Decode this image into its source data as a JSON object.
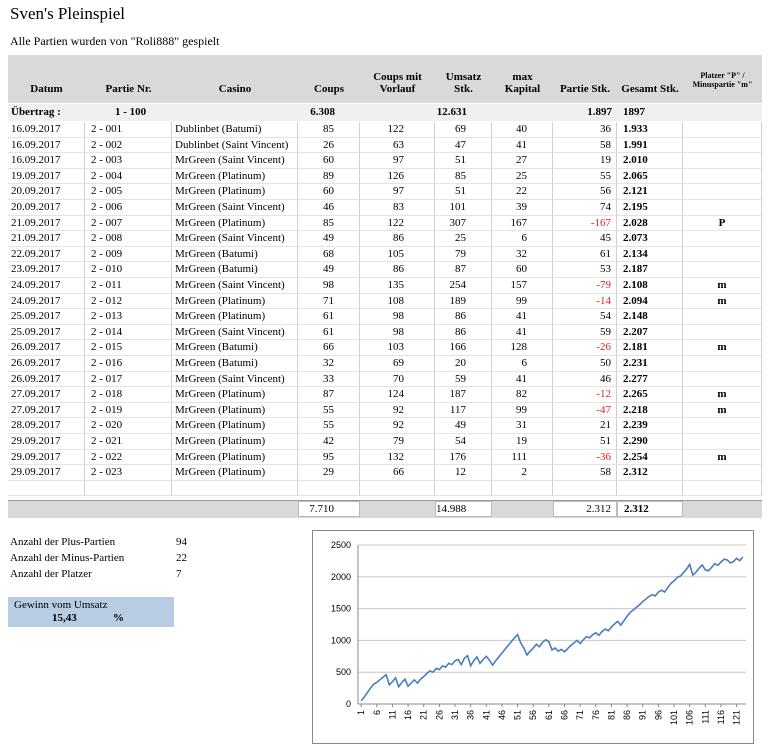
{
  "title": "Sven's Pleinspiel",
  "subtitle": "Alle Partien wurden von \"Roli888\" gespielt",
  "table": {
    "headers": [
      "Datum",
      "Partie Nr.",
      "Casino",
      "Coups",
      "Coups mit Vorlauf",
      "Umsatz Stk.",
      "max Kapital",
      "Partie Stk.",
      "Gesamt Stk.",
      "Platzer \"P\" / Minuspartie \"m\""
    ],
    "carry": {
      "label": "Übertrag :",
      "partie": "1 - 100",
      "coups": "6.308",
      "umsatz": "12.631",
      "partie_stk": "1.897",
      "gesamt": "1897"
    },
    "rows": [
      [
        "16.09.2017",
        "2 - 001",
        "Dublinbet (Batumi)",
        "85",
        "122",
        "69",
        "40",
        "36",
        "1.933"
      ],
      [
        "16.09.2017",
        "2 - 002",
        "Dublinbet (Saint Vincent)",
        "26",
        "63",
        "47",
        "41",
        "58",
        "1.991"
      ],
      [
        "16.09.2017",
        "2 - 003",
        "MrGreen (Saint Vincent)",
        "60",
        "97",
        "51",
        "27",
        "19",
        "2.010"
      ],
      [
        "19.09.2017",
        "2 - 004",
        "MrGreen (Platinum)",
        "89",
        "126",
        "85",
        "25",
        "55",
        "2.065"
      ],
      [
        "20.09.2017",
        "2 - 005",
        "MrGreen (Platinum)",
        "60",
        "97",
        "51",
        "22",
        "56",
        "2.121"
      ],
      [
        "20.09.2017",
        "2 - 006",
        "MrGreen (Saint Vincent)",
        "46",
        "83",
        "101",
        "39",
        "74",
        "2.195"
      ],
      [
        "21.09.2017",
        "2 - 007",
        "MrGreen (Platinum)",
        "85",
        "122",
        "307",
        "167",
        "-167",
        "2.028",
        "P"
      ],
      [
        "21.09.2017",
        "2 - 008",
        "MrGreen (Saint Vincent)",
        "49",
        "86",
        "25",
        "6",
        "45",
        "2.073"
      ],
      [
        "22.09.2017",
        "2 - 009",
        "MrGreen (Batumi)",
        "68",
        "105",
        "79",
        "32",
        "61",
        "2.134"
      ],
      [
        "23.09.2017",
        "2 - 010",
        "MrGreen (Batumi)",
        "49",
        "86",
        "87",
        "60",
        "53",
        "2.187"
      ],
      [
        "24.09.2017",
        "2 - 011",
        "MrGreen (Saint Vincent)",
        "98",
        "135",
        "254",
        "157",
        "-79",
        "2.108",
        "m"
      ],
      [
        "24.09.2017",
        "2 - 012",
        "MrGreen (Platinum)",
        "71",
        "108",
        "189",
        "99",
        "-14",
        "2.094",
        "m"
      ],
      [
        "25.09.2017",
        "2 - 013",
        "MrGreen (Platinum)",
        "61",
        "98",
        "86",
        "41",
        "54",
        "2.148"
      ],
      [
        "25.09.2017",
        "2 - 014",
        "MrGreen (Saint Vincent)",
        "61",
        "98",
        "86",
        "41",
        "59",
        "2.207"
      ],
      [
        "26.09.2017",
        "2 - 015",
        "MrGreen (Batumi)",
        "66",
        "103",
        "166",
        "128",
        "-26",
        "2.181",
        "m"
      ],
      [
        "26.09.2017",
        "2 - 016",
        "MrGreen (Batumi)",
        "32",
        "69",
        "20",
        "6",
        "50",
        "2.231"
      ],
      [
        "26.09.2017",
        "2 - 017",
        "MrGreen (Saint Vincent)",
        "33",
        "70",
        "59",
        "41",
        "46",
        "2.277"
      ],
      [
        "27.09.2017",
        "2 - 018",
        "MrGreen (Platinum)",
        "87",
        "124",
        "187",
        "82",
        "-12",
        "2.265",
        "m"
      ],
      [
        "27.09.2017",
        "2 - 019",
        "MrGreen (Platinum)",
        "55",
        "92",
        "117",
        "99",
        "-47",
        "2.218",
        "m"
      ],
      [
        "28.09.2017",
        "2 - 020",
        "MrGreen (Platinum)",
        "55",
        "92",
        "49",
        "31",
        "21",
        "2.239"
      ],
      [
        "29.09.2017",
        "2 - 021",
        "MrGreen (Platinum)",
        "42",
        "79",
        "54",
        "19",
        "51",
        "2.290"
      ],
      [
        "29.09.2017",
        "2 - 022",
        "MrGreen (Platinum)",
        "95",
        "132",
        "176",
        "111",
        "-36",
        "2.254",
        "m"
      ],
      [
        "29.09.2017",
        "2 - 023",
        "MrGreen (Platinum)",
        "29",
        "66",
        "12",
        "2",
        "58",
        "2.312"
      ]
    ],
    "totals": {
      "coups": "7.710",
      "umsatz": "14.988",
      "partie_stk": "2.312",
      "gesamt": "2.312"
    }
  },
  "stats": [
    {
      "label": "Anzahl der Plus-Partien",
      "value": 94
    },
    {
      "label": "Anzahl der Minus-Partien",
      "value": 22
    },
    {
      "label": "Anzahl der Platzer",
      "value": 7
    }
  ],
  "gain": {
    "label": "Gewinn vom Umsatz",
    "value": "15,43",
    "unit": "%"
  },
  "chart_data": {
    "type": "line",
    "x": [
      1,
      2,
      3,
      4,
      5,
      6,
      7,
      8,
      9,
      10,
      11,
      12,
      13,
      14,
      15,
      16,
      17,
      18,
      19,
      20,
      21,
      22,
      23,
      24,
      25,
      26,
      27,
      28,
      29,
      30,
      31,
      32,
      33,
      34,
      35,
      36,
      37,
      38,
      39,
      40,
      41,
      42,
      43,
      44,
      45,
      46,
      47,
      48,
      49,
      50,
      51,
      52,
      53,
      54,
      55,
      56,
      57,
      58,
      59,
      60,
      61,
      62,
      63,
      64,
      65,
      66,
      67,
      68,
      69,
      70,
      71,
      72,
      73,
      74,
      75,
      76,
      77,
      78,
      79,
      80,
      81,
      82,
      83,
      84,
      85,
      86,
      87,
      88,
      89,
      90,
      91,
      92,
      93,
      94,
      95,
      96,
      97,
      98,
      99,
      100,
      101,
      102,
      103,
      104,
      105,
      106,
      107,
      108,
      109,
      110,
      111,
      112,
      113,
      114,
      115,
      116,
      117,
      118,
      119,
      120,
      121,
      122,
      123
    ],
    "series": [
      {
        "color": "#4a7ebb",
        "values": [
          50,
          110,
          180,
          250,
          310,
          340,
          380,
          420,
          460,
          300,
          350,
          410,
          270,
          340,
          390,
          280,
          330,
          380,
          330,
          390,
          430,
          480,
          520,
          500,
          560,
          540,
          600,
          580,
          640,
          620,
          680,
          700,
          620,
          720,
          760,
          600,
          680,
          740,
          640,
          700,
          750,
          690,
          610,
          680,
          740,
          800,
          860,
          920,
          980,
          1040,
          1090,
          960,
          880,
          770,
          830,
          880,
          940,
          900,
          970,
          1010,
          980,
          850,
          880,
          830,
          860,
          820,
          870,
          920,
          960,
          1000,
          950,
          1010,
          1060,
          1040,
          1090,
          1120,
          1080,
          1140,
          1180,
          1150,
          1210,
          1260,
          1300,
          1240,
          1310,
          1380,
          1440,
          1480,
          1520,
          1560,
          1610,
          1650,
          1690,
          1720,
          1700,
          1760,
          1790,
          1760,
          1830,
          1897,
          1933,
          1991,
          2010,
          2065,
          2121,
          2195,
          2028,
          2073,
          2134,
          2187,
          2108,
          2094,
          2148,
          2207,
          2181,
          2231,
          2277,
          2265,
          2218,
          2239,
          2290,
          2254,
          2312
        ]
      }
    ],
    "xlim": [
      0,
      124
    ],
    "xticks": [
      1,
      6,
      11,
      16,
      21,
      26,
      31,
      36,
      41,
      46,
      51,
      56,
      61,
      66,
      71,
      76,
      81,
      86,
      91,
      96,
      101,
      106,
      111,
      116,
      121
    ],
    "ylim": [
      0,
      2500
    ],
    "yticks": [
      0,
      500,
      1000,
      1500,
      2000,
      2500
    ],
    "grid": true
  }
}
